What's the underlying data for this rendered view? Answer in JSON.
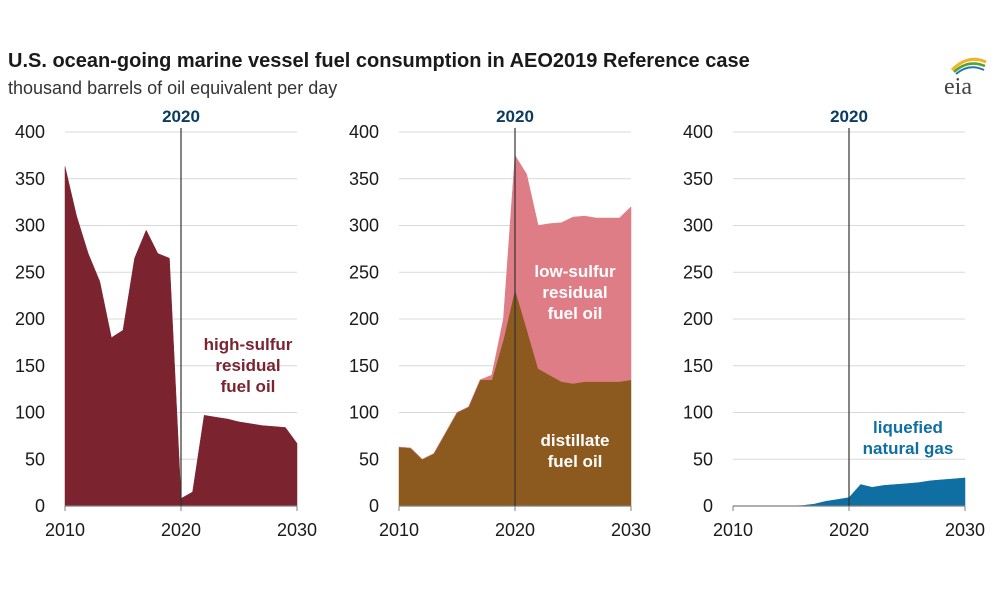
{
  "header": {
    "title": "U.S. ocean-going marine vessel fuel consumption in AEO2019 Reference case",
    "subtitle": "thousand barrels of oil equivalent per day",
    "logo_text": "eia"
  },
  "colors": {
    "high_sulfur": "#7b2430",
    "low_sulfur": "#de7d86",
    "distillate": "#8c5a1e",
    "lng": "#0f6fa3",
    "marker_label": "#0b3b60",
    "logo_arc_1": "#f0b429",
    "logo_arc_2": "#5aa02c",
    "logo_arc_3": "#1f78b4"
  },
  "chart_data": [
    {
      "type": "area",
      "xlim": [
        2010,
        2030
      ],
      "ylim": [
        0,
        400
      ],
      "x_ticks": [
        "2010",
        "2020",
        "2030"
      ],
      "y_ticks": [
        "0",
        "50",
        "100",
        "150",
        "200",
        "250",
        "300",
        "350",
        "400"
      ],
      "grid": true,
      "marker": {
        "x": 2020,
        "label": "2020"
      },
      "annotation_lines": [
        "high-sulfur",
        "residual",
        "fuel oil"
      ],
      "annotation_color": "#7b2430",
      "series": [
        {
          "name": "high-sulfur residual fuel oil",
          "color": "#7b2430",
          "x": [
            2010,
            2011,
            2012,
            2013,
            2014,
            2015,
            2016,
            2017,
            2018,
            2019,
            2020,
            2021,
            2022,
            2023,
            2024,
            2025,
            2026,
            2027,
            2028,
            2029,
            2030
          ],
          "values": [
            363,
            310,
            270,
            240,
            180,
            188,
            265,
            295,
            270,
            265,
            8,
            15,
            97,
            95,
            93,
            90,
            88,
            86,
            85,
            84,
            67
          ]
        }
      ]
    },
    {
      "type": "area",
      "stacked": true,
      "xlim": [
        2010,
        2030
      ],
      "ylim": [
        0,
        400
      ],
      "x_ticks": [
        "2010",
        "2020",
        "2030"
      ],
      "y_ticks": [
        "0",
        "50",
        "100",
        "150",
        "200",
        "250",
        "300",
        "350",
        "400"
      ],
      "grid": true,
      "marker": {
        "x": 2020,
        "label": "2020"
      },
      "annotations": [
        {
          "lines": [
            "low-sulfur",
            "residual",
            "fuel oil"
          ],
          "color": "#ffffff"
        },
        {
          "lines": [
            "distillate",
            "fuel oil"
          ],
          "color": "#ffffff"
        }
      ],
      "series": [
        {
          "name": "distillate fuel oil",
          "color": "#8c5a1e",
          "x": [
            2010,
            2011,
            2012,
            2013,
            2014,
            2015,
            2016,
            2017,
            2018,
            2019,
            2020,
            2021,
            2022,
            2023,
            2024,
            2025,
            2026,
            2027,
            2028,
            2029,
            2030
          ],
          "values": [
            63,
            62,
            50,
            56,
            78,
            100,
            106,
            135,
            135,
            178,
            232,
            190,
            147,
            140,
            133,
            131,
            133,
            133,
            133,
            133,
            135
          ]
        },
        {
          "name": "low-sulfur residual fuel oil",
          "color": "#de7d86",
          "x": [
            2010,
            2011,
            2012,
            2013,
            2014,
            2015,
            2016,
            2017,
            2018,
            2019,
            2020,
            2021,
            2022,
            2023,
            2024,
            2025,
            2026,
            2027,
            2028,
            2029,
            2030
          ],
          "values": [
            0,
            0,
            0,
            0,
            0,
            0,
            0,
            0,
            5,
            22,
            143,
            165,
            153,
            162,
            170,
            178,
            177,
            175,
            175,
            175,
            185
          ]
        }
      ]
    },
    {
      "type": "area",
      "xlim": [
        2010,
        2030
      ],
      "ylim": [
        0,
        400
      ],
      "x_ticks": [
        "2010",
        "2020",
        "2030"
      ],
      "y_ticks": [
        "0",
        "50",
        "100",
        "150",
        "200",
        "250",
        "300",
        "350",
        "400"
      ],
      "grid": true,
      "marker": {
        "x": 2020,
        "label": "2020"
      },
      "annotation_lines": [
        "liquefied",
        "natural gas"
      ],
      "annotation_color": "#0f6fa3",
      "series": [
        {
          "name": "liquefied natural gas",
          "color": "#0f6fa3",
          "x": [
            2010,
            2011,
            2012,
            2013,
            2014,
            2015,
            2016,
            2017,
            2018,
            2019,
            2020,
            2021,
            2022,
            2023,
            2024,
            2025,
            2026,
            2027,
            2028,
            2029,
            2030
          ],
          "values": [
            0,
            0,
            0,
            0,
            0,
            0,
            0.5,
            2,
            5,
            7,
            9,
            23,
            20,
            22,
            23,
            24,
            25,
            27,
            28,
            29,
            30
          ]
        }
      ]
    }
  ]
}
